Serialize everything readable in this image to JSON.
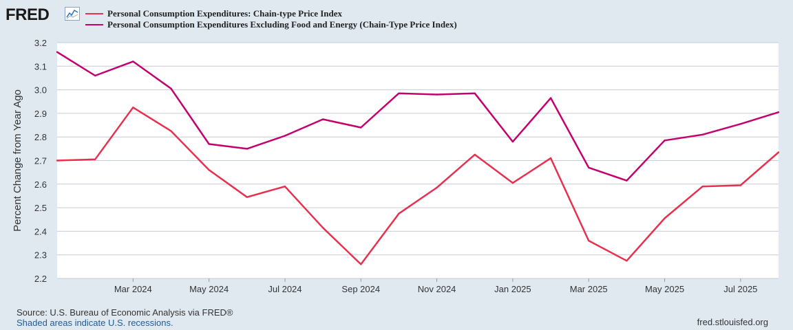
{
  "header": {
    "logo_text": "FRED",
    "logo_icon": "chart-line-icon"
  },
  "colors": {
    "series_1": "#e7304d",
    "series_2": "#c4006e",
    "background": "#e1e9f0",
    "plot_bg": "#ffffff",
    "grid": "#c6ccd3"
  },
  "chart_data": {
    "type": "line",
    "ylabel": "Percent Change from Year Ago",
    "ylim": [
      2.2,
      3.2
    ],
    "yticks": [
      "2.2",
      "2.3",
      "2.4",
      "2.5",
      "2.6",
      "2.7",
      "2.8",
      "2.9",
      "3.0",
      "3.1",
      "3.2"
    ],
    "x": [
      "2024-01",
      "2024-02",
      "2024-03",
      "2024-04",
      "2024-05",
      "2024-06",
      "2024-07",
      "2024-08",
      "2024-09",
      "2024-10",
      "2024-11",
      "2024-12",
      "2025-01",
      "2025-02",
      "2025-03",
      "2025-04",
      "2025-05",
      "2025-06",
      "2025-07",
      "2025-08"
    ],
    "xlim": [
      "2024-01",
      "2025-08"
    ],
    "xticks": [
      {
        "x": "2024-03",
        "label": "Mar 2024"
      },
      {
        "x": "2024-05",
        "label": "May 2024"
      },
      {
        "x": "2024-07",
        "label": "Jul 2024"
      },
      {
        "x": "2024-09",
        "label": "Sep 2024"
      },
      {
        "x": "2024-11",
        "label": "Nov 2024"
      },
      {
        "x": "2025-01",
        "label": "Jan 2025"
      },
      {
        "x": "2025-03",
        "label": "Mar 2025"
      },
      {
        "x": "2025-05",
        "label": "May 2025"
      },
      {
        "x": "2025-07",
        "label": "Jul 2025"
      }
    ],
    "series": [
      {
        "name": "Personal Consumption Expenditures: Chain-type Price Index",
        "values": [
          2.7,
          2.705,
          2.925,
          2.825,
          2.66,
          2.545,
          2.59,
          2.415,
          2.26,
          2.475,
          2.585,
          2.725,
          2.605,
          2.71,
          2.36,
          2.275,
          2.455,
          2.59,
          2.595,
          2.735
        ]
      },
      {
        "name": "Personal Consumption Expenditures Excluding Food and Energy (Chain-Type Price Index)",
        "values": [
          3.16,
          3.06,
          3.12,
          3.005,
          2.77,
          2.75,
          2.805,
          2.875,
          2.84,
          2.985,
          2.98,
          2.985,
          2.78,
          2.965,
          2.67,
          2.615,
          2.785,
          2.81,
          2.855,
          2.905
        ]
      }
    ],
    "grid": true,
    "legend": "top-left"
  },
  "footer": {
    "source": "Source: U.S. Bureau of Economic Analysis via FRED®",
    "note": "Shaded areas indicate U.S. recessions.",
    "url": "fred.stlouisfed.org"
  }
}
